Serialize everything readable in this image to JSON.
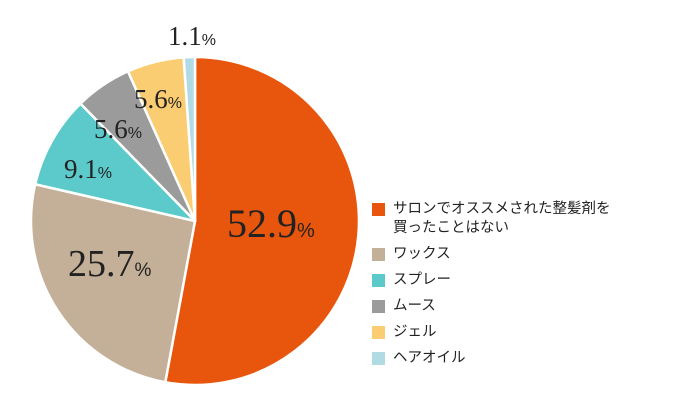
{
  "chart_data": {
    "type": "pie",
    "title": "",
    "categories": [
      "サロンでオススメされた整髪剤を\n買ったことはない",
      "ワックス",
      "スプレー",
      "ムース",
      "ジェル",
      "ヘアオイル"
    ],
    "values": [
      52.9,
      25.7,
      9.1,
      5.6,
      5.6,
      1.1
    ],
    "value_labels": [
      {
        "num": "52.9",
        "unit": "%"
      },
      {
        "num": "25.7",
        "unit": "%"
      },
      {
        "num": "9.1",
        "unit": "%"
      },
      {
        "num": "5.6",
        "unit": "%"
      },
      {
        "num": "5.6",
        "unit": "%"
      },
      {
        "num": "1.1",
        "unit": "%"
      }
    ],
    "colors": [
      "#e8560d",
      "#c4b098",
      "#5ccaca",
      "#9b9b9b",
      "#fbcd72",
      "#b0dbe4"
    ],
    "start": "12 o'clock, clockwise",
    "legend_position": "right"
  }
}
